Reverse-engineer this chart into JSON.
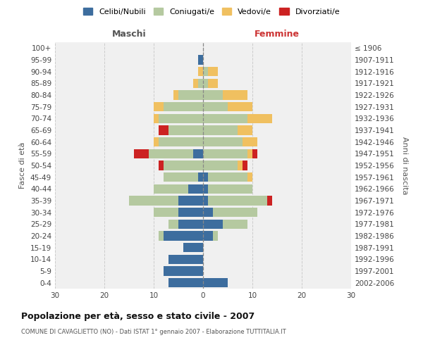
{
  "age_groups": [
    "0-4",
    "5-9",
    "10-14",
    "15-19",
    "20-24",
    "25-29",
    "30-34",
    "35-39",
    "40-44",
    "45-49",
    "50-54",
    "55-59",
    "60-64",
    "65-69",
    "70-74",
    "75-79",
    "80-84",
    "85-89",
    "90-94",
    "95-99",
    "100+"
  ],
  "birth_years": [
    "2002-2006",
    "1997-2001",
    "1992-1996",
    "1987-1991",
    "1982-1986",
    "1977-1981",
    "1972-1976",
    "1967-1971",
    "1962-1966",
    "1957-1961",
    "1952-1956",
    "1947-1951",
    "1942-1946",
    "1937-1941",
    "1932-1936",
    "1927-1931",
    "1922-1926",
    "1917-1921",
    "1912-1916",
    "1907-1911",
    "≤ 1906"
  ],
  "male": {
    "celibi": [
      7,
      8,
      7,
      4,
      8,
      5,
      5,
      5,
      3,
      1,
      0,
      2,
      0,
      0,
      0,
      0,
      0,
      0,
      0,
      1,
      0
    ],
    "coniugati": [
      0,
      0,
      0,
      0,
      1,
      2,
      5,
      10,
      7,
      7,
      8,
      9,
      9,
      7,
      9,
      8,
      5,
      1,
      0,
      0,
      0
    ],
    "vedovi": [
      0,
      0,
      0,
      0,
      0,
      0,
      0,
      0,
      0,
      0,
      0,
      0,
      1,
      0,
      1,
      2,
      1,
      1,
      1,
      0,
      0
    ],
    "divorziati": [
      0,
      0,
      0,
      0,
      0,
      0,
      0,
      0,
      0,
      0,
      1,
      3,
      0,
      2,
      0,
      0,
      0,
      0,
      0,
      0,
      0
    ]
  },
  "female": {
    "nubili": [
      5,
      0,
      0,
      0,
      2,
      4,
      2,
      1,
      1,
      1,
      0,
      0,
      0,
      0,
      0,
      0,
      0,
      0,
      0,
      0,
      0
    ],
    "coniugate": [
      0,
      0,
      0,
      0,
      1,
      5,
      9,
      12,
      9,
      8,
      7,
      9,
      8,
      7,
      9,
      5,
      4,
      1,
      1,
      0,
      0
    ],
    "vedove": [
      0,
      0,
      0,
      0,
      0,
      0,
      0,
      0,
      0,
      1,
      1,
      1,
      3,
      3,
      5,
      5,
      5,
      2,
      2,
      0,
      0
    ],
    "divorziate": [
      0,
      0,
      0,
      0,
      0,
      0,
      0,
      1,
      0,
      0,
      1,
      1,
      0,
      0,
      0,
      0,
      0,
      0,
      0,
      0,
      0
    ]
  },
  "colors": {
    "celibi": "#3d6d9e",
    "coniugati": "#b5c9a0",
    "vedovi": "#f0c060",
    "divorziati": "#cc2222"
  },
  "xlim": 30,
  "title": "Popolazione per età, sesso e stato civile - 2007",
  "subtitle": "COMUNE DI CAVAGLIETTO (NO) - Dati ISTAT 1° gennaio 2007 - Elaborazione TUTTITALIA.IT",
  "legend_labels": [
    "Celibi/Nubili",
    "Coniugati/e",
    "Vedovi/e",
    "Divorziati/e"
  ],
  "xlabel_left": "Maschi",
  "xlabel_right": "Femmine",
  "ylabel_left": "Fasce di età",
  "ylabel_right": "Anni di nascita",
  "bg_color": "#f0f0f0",
  "grid_color": "#cccccc"
}
